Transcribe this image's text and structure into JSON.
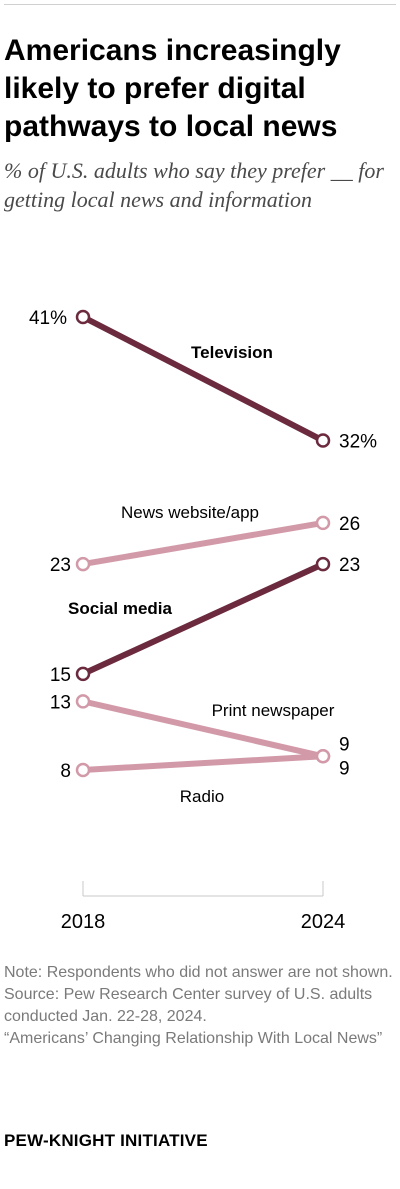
{
  "title": "Americans increasingly likely to prefer digital pathways to local news",
  "subtitle": "% of U.S. adults who say they prefer __ for getting local news and information",
  "chart_data": {
    "type": "line",
    "x": [
      "2018",
      "2024"
    ],
    "series": [
      {
        "name": "Television",
        "values": [
          41,
          32
        ],
        "start_label": "41%",
        "end_label": "32%",
        "color": "#6b2a3e",
        "emphasis": true
      },
      {
        "name": "News website/app",
        "values": [
          23,
          26
        ],
        "start_label": "23",
        "end_label": "26",
        "color": "#d29aa9",
        "emphasis": false
      },
      {
        "name": "Social media",
        "values": [
          15,
          23
        ],
        "start_label": "15",
        "end_label": "23",
        "color": "#6b2a3e",
        "emphasis": true
      },
      {
        "name": "Print newspaper",
        "values": [
          13,
          9
        ],
        "start_label": "13",
        "end_label": "9",
        "color": "#d29aa9",
        "emphasis": false
      },
      {
        "name": "Radio",
        "values": [
          8,
          9
        ],
        "start_label": "8",
        "end_label": "9",
        "color": "#d29aa9",
        "emphasis": false
      }
    ],
    "ylim": [
      8,
      41
    ],
    "grid": false
  },
  "footer": {
    "note": "Note: Respondents who did not answer are not shown.",
    "source": "Source: Pew Research Center survey of U.S. adults conducted Jan. 22-28, 2024.",
    "report": "“Americans’ Changing Relationship With Local News”"
  },
  "brand": "PEW-KNIGHT INITIATIVE"
}
